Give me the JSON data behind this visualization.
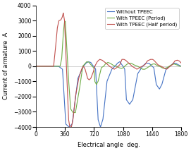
{
  "title": "",
  "xlabel": "Electrical angle  deg.",
  "ylabel": "Current of armature  A",
  "xlim": [
    0,
    1800
  ],
  "ylim": [
    -4000,
    4000
  ],
  "xticks": [
    0,
    360,
    720,
    1080,
    1440,
    1800
  ],
  "yticks": [
    -4000,
    -3000,
    -2000,
    -1000,
    0,
    1000,
    2000,
    3000,
    4000
  ],
  "legend": [
    "Without TPEEC",
    "With TPEEC (Period)",
    "With TPEEC (Half period)"
  ],
  "colors": {
    "blue": "#4472C4",
    "green": "#70AD47",
    "red": "#C0504D"
  },
  "background": "#FFFFFF",
  "grid_color": "#BEBEBE"
}
